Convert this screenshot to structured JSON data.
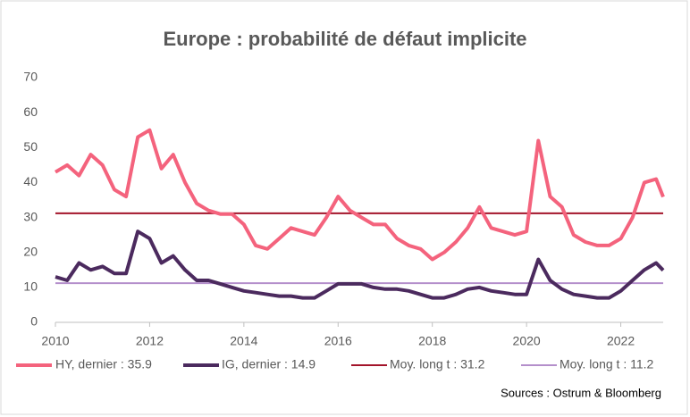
{
  "chart_data": {
    "type": "line",
    "title": "Europe : probabilité de défaut implicite",
    "source": "Sources : Ostrum & Bloomberg",
    "x": [
      2010,
      2010.25,
      2010.5,
      2010.75,
      2011,
      2011.25,
      2011.5,
      2011.75,
      2012,
      2012.25,
      2012.5,
      2012.75,
      2013,
      2013.25,
      2013.5,
      2013.75,
      2014,
      2014.25,
      2014.5,
      2014.75,
      2015,
      2015.25,
      2015.5,
      2015.75,
      2016,
      2016.25,
      2016.5,
      2016.75,
      2017,
      2017.25,
      2017.5,
      2017.75,
      2018,
      2018.25,
      2018.5,
      2018.75,
      2019,
      2019.25,
      2019.5,
      2019.75,
      2020,
      2020.25,
      2020.5,
      2020.75,
      2021,
      2021.25,
      2021.5,
      2021.75,
      2022,
      2022.25,
      2022.5,
      2022.75,
      2022.9
    ],
    "series": [
      {
        "name": "HY, dernier :  35.9",
        "color": "#f4637d",
        "values": [
          43,
          45,
          42,
          48,
          45,
          38,
          36,
          53,
          55,
          44,
          48,
          40,
          34,
          32,
          31,
          31,
          28,
          22,
          21,
          24,
          27,
          26,
          25,
          30,
          36,
          32,
          30,
          28,
          28,
          24,
          22,
          21,
          18,
          20,
          23,
          27,
          33,
          27,
          26,
          25,
          26,
          52,
          36,
          33,
          25,
          23,
          22,
          22,
          24,
          30,
          40,
          41,
          35.9
        ]
      },
      {
        "name": "IG, dernier :  14.9",
        "color": "#4b2a5e",
        "values": [
          13,
          12,
          17,
          15,
          16,
          14,
          14,
          26,
          24,
          17,
          19,
          15,
          12,
          12,
          11,
          10,
          9,
          8.5,
          8,
          7.5,
          7.5,
          7,
          7,
          9,
          11,
          11,
          11,
          10,
          9.5,
          9.5,
          9,
          8,
          7,
          7,
          8,
          9.5,
          10,
          9,
          8.5,
          8,
          8,
          18,
          12,
          9.5,
          8,
          7.5,
          7,
          7,
          9,
          12,
          15,
          17,
          14.9
        ]
      }
    ],
    "hlines": [
      {
        "name": "Moy. long t : 31.2",
        "value": 31.2,
        "color": "#a3142a"
      },
      {
        "name": "Moy. long t : 11.2",
        "value": 11.2,
        "color": "#b48fcb"
      }
    ],
    "xlim": [
      2010,
      2022.9
    ],
    "xticks": [
      2010,
      2012,
      2014,
      2016,
      2018,
      2020,
      2022
    ],
    "ylim": [
      0,
      70
    ],
    "yticks": [
      0,
      10,
      20,
      30,
      40,
      50,
      60,
      70
    ]
  }
}
